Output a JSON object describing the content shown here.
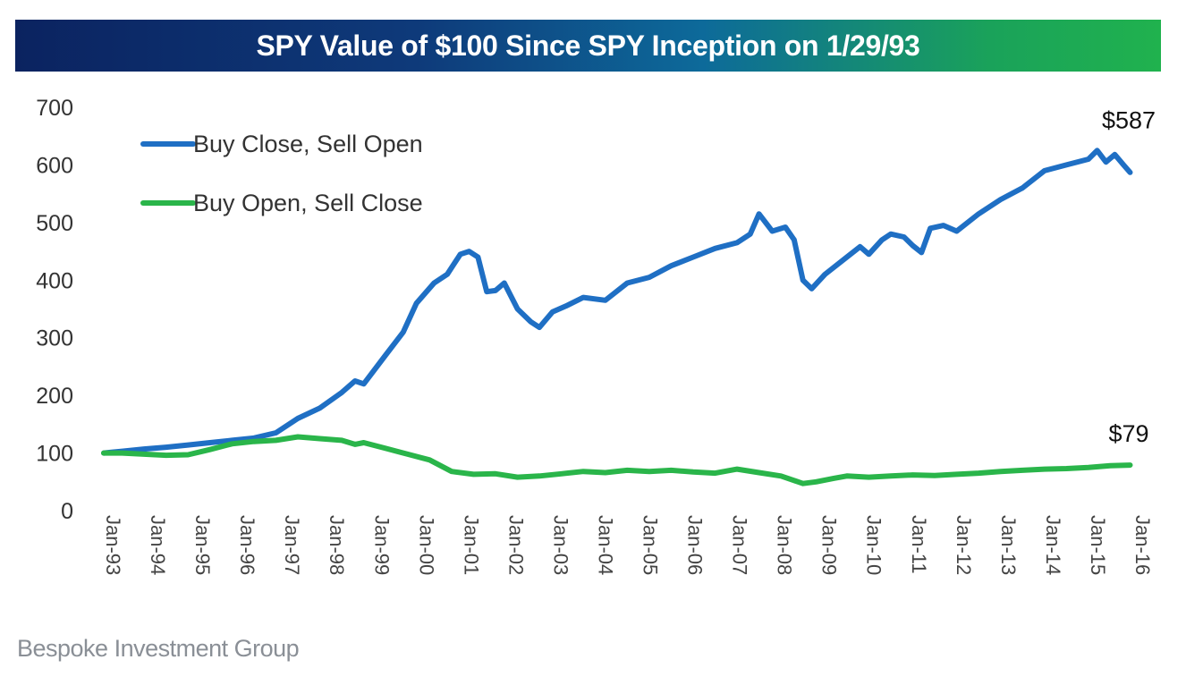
{
  "chart_data": {
    "type": "line",
    "title": "SPY Value of $100 Since SPY Inception on 1/29/93",
    "xlabel": "",
    "ylabel": "",
    "ylim": [
      0,
      700
    ],
    "yticks": [
      0,
      100,
      200,
      300,
      400,
      500,
      600,
      700
    ],
    "grid": false,
    "legend_position": "top-left",
    "x_tick_labels": [
      "Jan-93",
      "Jan-94",
      "Jan-95",
      "Jan-96",
      "Jan-97",
      "Jan-98",
      "Jan-99",
      "Jan-00",
      "Jan-01",
      "Jan-02",
      "Jan-03",
      "Jan-04",
      "Jan-05",
      "Jan-06",
      "Jan-07",
      "Jan-08",
      "Jan-09",
      "Jan-10",
      "Jan-11",
      "Jan-12",
      "Jan-13",
      "Jan-14",
      "Jan-15",
      "Jan-16"
    ],
    "xlim": [
      1993.08,
      2016.5
    ],
    "series": [
      {
        "name": "Buy Close, Sell Open",
        "color": "#1f6fc4",
        "end_label": "$587",
        "x": [
          1993.08,
          1993.5,
          1994.0,
          1994.5,
          1995.0,
          1995.5,
          1996.0,
          1996.5,
          1997.0,
          1997.5,
          1998.0,
          1998.5,
          1998.8,
          1999.0,
          1999.5,
          1999.9,
          2000.2,
          2000.6,
          2000.9,
          2001.2,
          2001.4,
          2001.6,
          2001.8,
          2002.0,
          2002.2,
          2002.5,
          2002.8,
          2003.0,
          2003.3,
          2003.6,
          2004.0,
          2004.5,
          2005.0,
          2005.5,
          2006.0,
          2006.5,
          2007.0,
          2007.5,
          2007.8,
          2008.0,
          2008.3,
          2008.6,
          2008.8,
          2009.0,
          2009.2,
          2009.5,
          2010.0,
          2010.3,
          2010.5,
          2010.8,
          2011.0,
          2011.3,
          2011.5,
          2011.7,
          2011.9,
          2012.2,
          2012.5,
          2013.0,
          2013.5,
          2014.0,
          2014.5,
          2015.0,
          2015.5,
          2015.7,
          2015.9,
          2016.1,
          2016.3,
          2016.45
        ],
        "y": [
          100,
          103,
          107,
          110,
          114,
          118,
          122,
          126,
          135,
          160,
          178,
          205,
          225,
          220,
          270,
          310,
          360,
          395,
          410,
          445,
          450,
          440,
          380,
          382,
          395,
          350,
          328,
          318,
          345,
          355,
          370,
          365,
          395,
          405,
          425,
          440,
          455,
          465,
          480,
          515,
          485,
          492,
          470,
          400,
          385,
          410,
          440,
          458,
          445,
          470,
          480,
          475,
          460,
          448,
          490,
          495,
          485,
          515,
          540,
          560,
          590,
          600,
          610,
          625,
          605,
          618,
          600,
          587
        ]
      },
      {
        "name": "Buy Open, Sell Close",
        "color": "#2ab54a",
        "end_label": "$79",
        "x": [
          1993.08,
          1993.5,
          1994.0,
          1994.5,
          1995.0,
          1995.5,
          1996.0,
          1996.5,
          1997.0,
          1997.5,
          1998.0,
          1998.5,
          1998.8,
          1999.0,
          1999.5,
          2000.0,
          2000.5,
          2001.0,
          2001.5,
          2002.0,
          2002.5,
          2003.0,
          2003.5,
          2004.0,
          2004.5,
          2005.0,
          2005.5,
          2006.0,
          2006.5,
          2007.0,
          2007.5,
          2008.0,
          2008.5,
          2009.0,
          2009.3,
          2009.7,
          2010.0,
          2010.5,
          2011.0,
          2011.5,
          2012.0,
          2012.5,
          2013.0,
          2013.5,
          2014.0,
          2014.5,
          2015.0,
          2015.5,
          2016.0,
          2016.45
        ],
        "y": [
          100,
          100,
          98,
          96,
          97,
          106,
          116,
          120,
          122,
          128,
          125,
          122,
          115,
          118,
          108,
          98,
          88,
          68,
          63,
          64,
          58,
          60,
          64,
          68,
          66,
          70,
          68,
          70,
          67,
          65,
          72,
          66,
          60,
          47,
          50,
          56,
          60,
          58,
          60,
          62,
          61,
          63,
          65,
          68,
          70,
          72,
          73,
          75,
          78,
          79
        ]
      }
    ]
  },
  "footer": {
    "source": "Bespoke Investment Group"
  }
}
